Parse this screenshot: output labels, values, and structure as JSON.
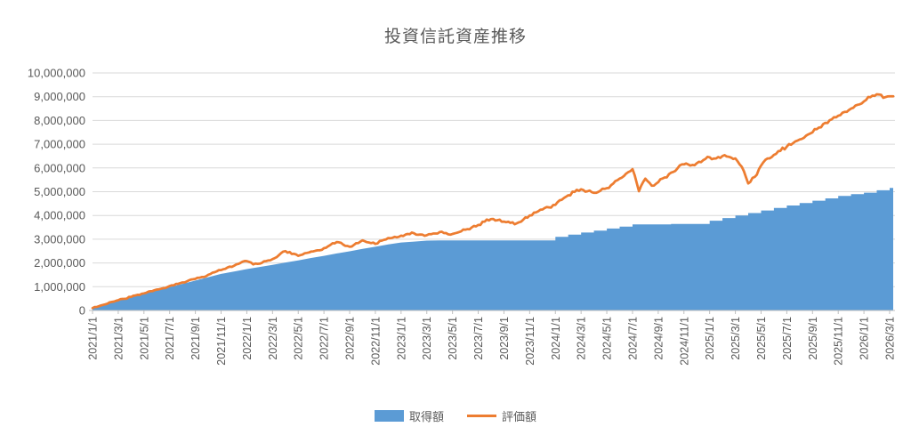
{
  "chart_data": {
    "type": "area+line",
    "title": "投資信託資産推移",
    "ylim": [
      0,
      10000000
    ],
    "grid": true,
    "legend_position": "bottom",
    "y_tick_labels": [
      "0",
      "1,000,000",
      "2,000,000",
      "3,000,000",
      "4,000,000",
      "5,000,000",
      "6,000,000",
      "7,000,000",
      "8,000,000",
      "9,000,000",
      "10,000,000"
    ],
    "x_tick_labels": [
      "2021/1/1",
      "2021/3/1",
      "2021/5/1",
      "2021/7/1",
      "2021/9/1",
      "2021/11/1",
      "2022/1/1",
      "2022/3/1",
      "2022/5/1",
      "2022/7/1",
      "2022/9/1",
      "2022/11/1",
      "2023/1/1",
      "2023/3/1",
      "2023/5/1",
      "2023/7/1",
      "2023/9/1",
      "2023/11/1",
      "2024/1/1",
      "2024/3/1",
      "2024/5/1",
      "2024/7/1",
      "2024/9/1",
      "2024/11/1",
      "2025/1/1",
      "2025/3/1",
      "2025/5/1",
      "2025/7/1",
      "2025/9/1",
      "2025/11/1",
      "2026/1/1",
      "2026/3/1"
    ],
    "x_start_month": "2021/1",
    "x_end_month": "2026/3",
    "series": [
      {
        "name": "取得額",
        "type": "area",
        "color": "#5B9BD5",
        "interval": "monthly",
        "values": [
          100000,
          250000,
          400000,
          550000,
          700000,
          840000,
          980000,
          1120000,
          1260000,
          1400000,
          1540000,
          1640000,
          1740000,
          1830000,
          1920000,
          2020000,
          2110000,
          2210000,
          2300000,
          2400000,
          2490000,
          2590000,
          2680000,
          2780000,
          2860000,
          2900000,
          2940000,
          2950000,
          2950000,
          2950000,
          2950000,
          2950000,
          2950000,
          2950000,
          2950000,
          2950000,
          3100000,
          3190000,
          3280000,
          3360000,
          3450000,
          3530000,
          3620000,
          3620000,
          3620000,
          3640000,
          3640000,
          3640000,
          3780000,
          3890000,
          4000000,
          4100000,
          4210000,
          4320000,
          4420000,
          4520000,
          4620000,
          4720000,
          4820000,
          4900000,
          4960000,
          5060000,
          5160000
        ]
      },
      {
        "name": "評価額",
        "type": "line",
        "color": "#ED7D31",
        "interval": "semi-monthly",
        "values": [
          100000,
          180000,
          260000,
          360000,
          430000,
          490000,
          570000,
          660000,
          720000,
          810000,
          880000,
          940000,
          1030000,
          1120000,
          1180000,
          1270000,
          1330000,
          1410000,
          1500000,
          1610000,
          1700000,
          1810000,
          1880000,
          2000000,
          2080000,
          1940000,
          1970000,
          2080000,
          2160000,
          2330000,
          2500000,
          2380000,
          2300000,
          2410000,
          2480000,
          2530000,
          2620000,
          2760000,
          2880000,
          2770000,
          2680000,
          2830000,
          2950000,
          2860000,
          2800000,
          2940000,
          3050000,
          3100000,
          3150000,
          3220000,
          3250000,
          3200000,
          3170000,
          3240000,
          3300000,
          3260000,
          3220000,
          3300000,
          3400000,
          3500000,
          3600000,
          3740000,
          3850000,
          3800000,
          3740000,
          3690000,
          3670000,
          3820000,
          4000000,
          4130000,
          4250000,
          4340000,
          4450000,
          4660000,
          4850000,
          4990000,
          5100000,
          5020000,
          4950000,
          5040000,
          5150000,
          5340000,
          5550000,
          5760000,
          5950000,
          5020000,
          5550000,
          5250000,
          5400000,
          5600000,
          5800000,
          5980000,
          6150000,
          6100000,
          6200000,
          6330000,
          6450000,
          6400000,
          6500000,
          6470000,
          6400000,
          6050000,
          5350000,
          5620000,
          6100000,
          6400000,
          6550000,
          6720000,
          6900000,
          7050000,
          7200000,
          7360000,
          7500000,
          7700000,
          7900000,
          8050000,
          8200000,
          8360000,
          8500000,
          8660000,
          8800000,
          8980000,
          9100000,
          8950000,
          9020000
        ]
      }
    ]
  },
  "colors": {
    "area_fill": "#5B9BD5",
    "line_stroke": "#ED7D31",
    "gridline": "#D9D9D9",
    "axis_line": "#BFBFBF",
    "tick_text": "#595959",
    "title_text": "#595959",
    "background": "#FFFFFF"
  }
}
